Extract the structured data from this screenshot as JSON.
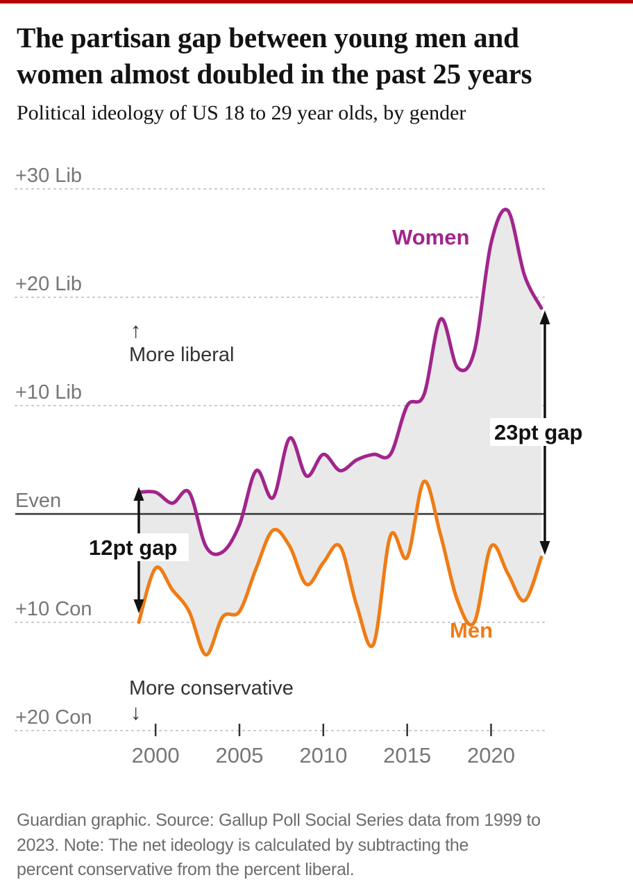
{
  "colors": {
    "top_bar": "#b80000",
    "women": "#a1258c",
    "men": "#ef7c15",
    "gap_fill": "#e9e9e9",
    "grid": "#c7c7c7",
    "axis_text": "#767676",
    "even_line": "#333333",
    "direction_text": "#333333",
    "annotation": "#121212"
  },
  "header": {
    "title_line1": "The partisan gap between young men and",
    "title_line2": "women almost doubled in the past 25 years",
    "subtitle": "Political ideology of US 18 to 29 year olds, by gender"
  },
  "chart_data": {
    "type": "line",
    "title": "Political ideology of US 18 to 29 year olds, by gender",
    "x": [
      1999,
      2000,
      2001,
      2002,
      2003,
      2004,
      2005,
      2006,
      2007,
      2008,
      2009,
      2010,
      2011,
      2012,
      2013,
      2014,
      2015,
      2016,
      2017,
      2018,
      2019,
      2020,
      2021,
      2022,
      2023
    ],
    "series": [
      {
        "name": "Women",
        "color": "#a1258c",
        "values": [
          2,
          2,
          1,
          2,
          -3,
          -3.5,
          -1,
          4,
          1.5,
          7,
          3.5,
          5.5,
          4,
          5,
          5.5,
          5.5,
          10,
          11,
          18,
          13.5,
          15,
          25,
          28,
          22,
          19
        ]
      },
      {
        "name": "Men",
        "color": "#ef7c15",
        "values": [
          -10,
          -5,
          -7,
          -9,
          -13,
          -9.5,
          -9,
          -5,
          -1.5,
          -3,
          -6.5,
          -4.5,
          -3,
          -8.5,
          -12,
          -2,
          -4,
          3,
          -2,
          -8,
          -10,
          -3,
          -5.5,
          -8,
          -4
        ]
      }
    ],
    "ylim": [
      -22,
      32
    ],
    "y_axis_ticks": [
      {
        "value": 30,
        "label": "+30 Lib"
      },
      {
        "value": 20,
        "label": "+20 Lib"
      },
      {
        "value": 10,
        "label": "+10 Lib"
      },
      {
        "value": 0,
        "label": "Even"
      },
      {
        "value": -10,
        "label": "+10 Con"
      },
      {
        "value": -20,
        "label": "+20 Con"
      }
    ],
    "x_axis_ticks": [
      2000,
      2005,
      2010,
      2015,
      2020
    ],
    "grid": "dotted horizontal gridlines, solid line at Even",
    "legend_position": "inline series labels"
  },
  "annotations": {
    "more_liberal": "More liberal",
    "more_conservative": "More conservative",
    "up_arrow": "↑",
    "down_arrow": "↓",
    "gap_start": "12pt gap",
    "gap_end": "23pt gap"
  },
  "footer": {
    "lines": [
      "Guardian graphic. Source: Gallup Poll Social Series data from 1999 to",
      "2023. Note: The net ideology is calculated by subtracting the",
      "percent conservative from the percent liberal."
    ]
  }
}
